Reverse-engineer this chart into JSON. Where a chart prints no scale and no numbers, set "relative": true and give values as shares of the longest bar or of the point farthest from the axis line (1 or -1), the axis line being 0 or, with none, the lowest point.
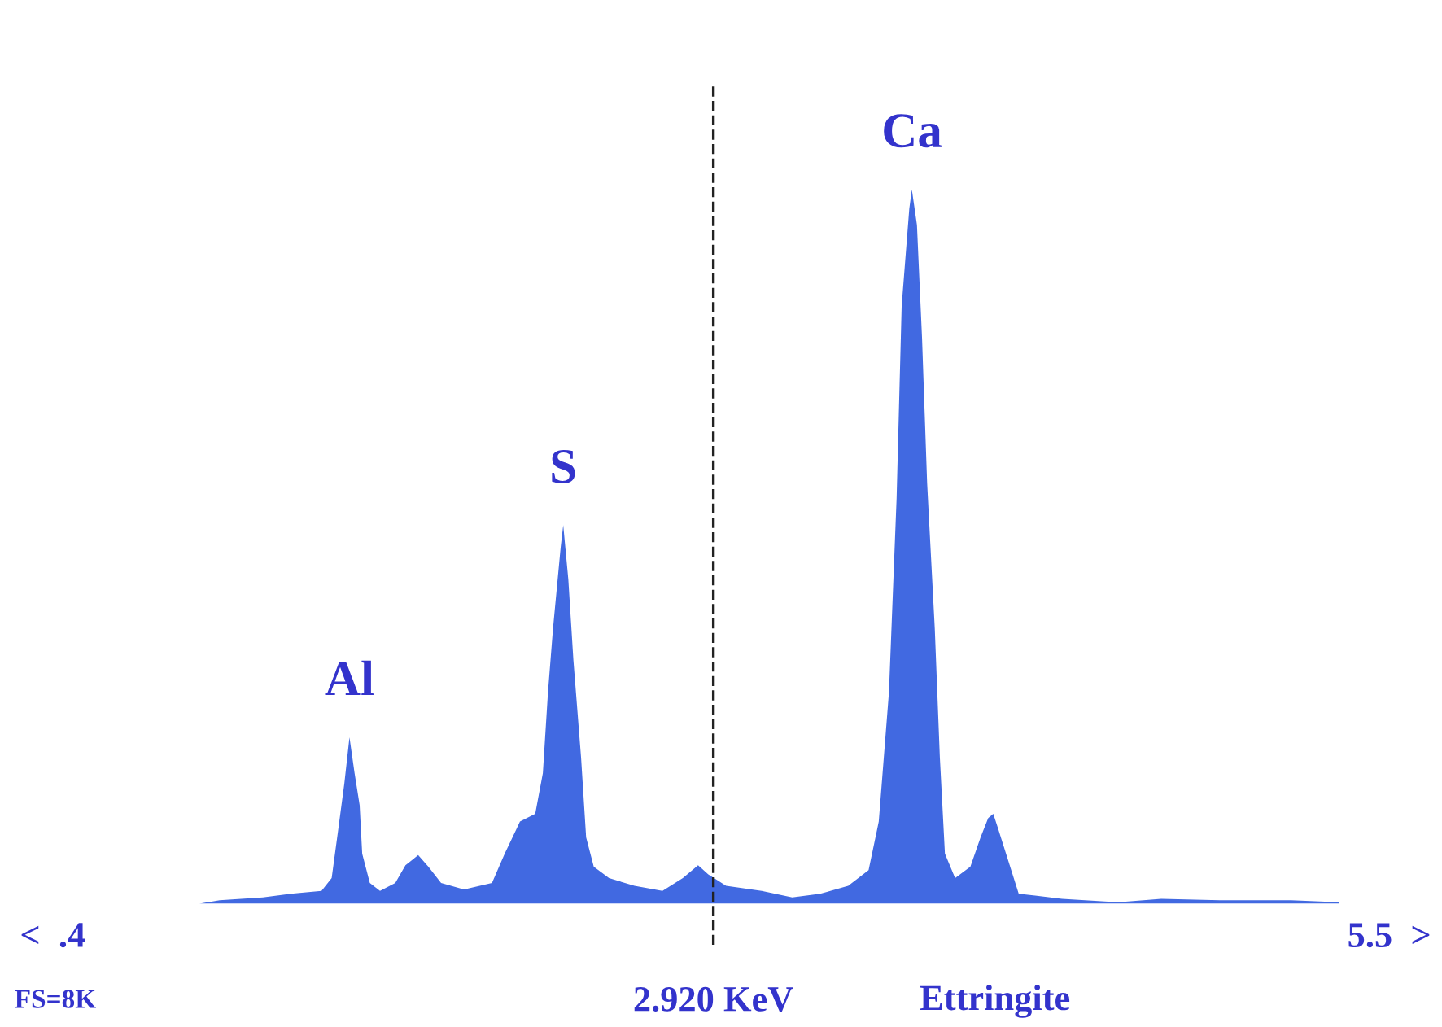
{
  "chart_data": {
    "type": "area",
    "relative": true,
    "color": "#4169e1",
    "x": [
      0.9,
      0.98,
      1.15,
      1.26,
      1.38,
      1.42,
      1.45,
      1.47,
      1.49,
      1.51,
      1.53,
      1.54,
      1.57,
      1.61,
      1.67,
      1.71,
      1.76,
      1.8,
      1.85,
      1.94,
      2.05,
      2.1,
      2.16,
      2.22,
      2.25,
      2.27,
      2.29,
      2.32,
      2.33,
      2.35,
      2.37,
      2.4,
      2.42,
      2.45,
      2.51,
      2.61,
      2.72,
      2.8,
      2.86,
      2.9,
      2.97,
      3.11,
      3.23,
      3.34,
      3.45,
      3.53,
      3.57,
      3.61,
      3.64,
      3.66,
      3.69,
      3.7,
      3.72,
      3.74,
      3.76,
      3.79,
      3.81,
      3.83,
      3.87,
      3.93,
      3.97,
      4.0,
      4.02,
      4.04,
      4.08,
      4.12,
      4.29,
      4.51,
      4.68,
      4.91,
      5.19,
      5.38
    ],
    "values": [
      0,
      0.005,
      0.009,
      0.014,
      0.018,
      0.036,
      0.115,
      0.169,
      0.233,
      0.183,
      0.138,
      0.07,
      0.029,
      0.018,
      0.029,
      0.054,
      0.068,
      0.052,
      0.029,
      0.02,
      0.029,
      0.07,
      0.115,
      0.126,
      0.183,
      0.296,
      0.386,
      0.499,
      0.53,
      0.454,
      0.341,
      0.205,
      0.093,
      0.052,
      0.036,
      0.025,
      0.018,
      0.036,
      0.054,
      0.041,
      0.025,
      0.018,
      0.009,
      0.014,
      0.025,
      0.047,
      0.115,
      0.296,
      0.567,
      0.837,
      0.973,
      1,
      0.95,
      0.792,
      0.589,
      0.386,
      0.205,
      0.07,
      0.036,
      0.052,
      0.093,
      0.12,
      0.126,
      0.104,
      0.059,
      0.014,
      0.007,
      0.002,
      0.007,
      0.005,
      0.005,
      0.002
    ],
    "xlim": [
      0.4,
      5.5
    ],
    "xticks": [
      {
        "value": 0.4,
        "label": ".4"
      },
      {
        "value": 5.5,
        "label": "5.5"
      }
    ],
    "ref_lines": [
      {
        "axis": "x",
        "value": 2.92,
        "label": "2.920 KeV",
        "color": "#222222",
        "line_style": "dashed"
      }
    ],
    "annotations": [
      {
        "text": "Al",
        "x": 1.49,
        "y": 0.233
      },
      {
        "text": "S",
        "x": 2.33,
        "y": 0.53
      },
      {
        "text": "Ca",
        "x": 3.7,
        "y": 1
      },
      "FS=8K",
      "Ettringite",
      "<",
      ">"
    ],
    "grid": false,
    "legend": false
  }
}
